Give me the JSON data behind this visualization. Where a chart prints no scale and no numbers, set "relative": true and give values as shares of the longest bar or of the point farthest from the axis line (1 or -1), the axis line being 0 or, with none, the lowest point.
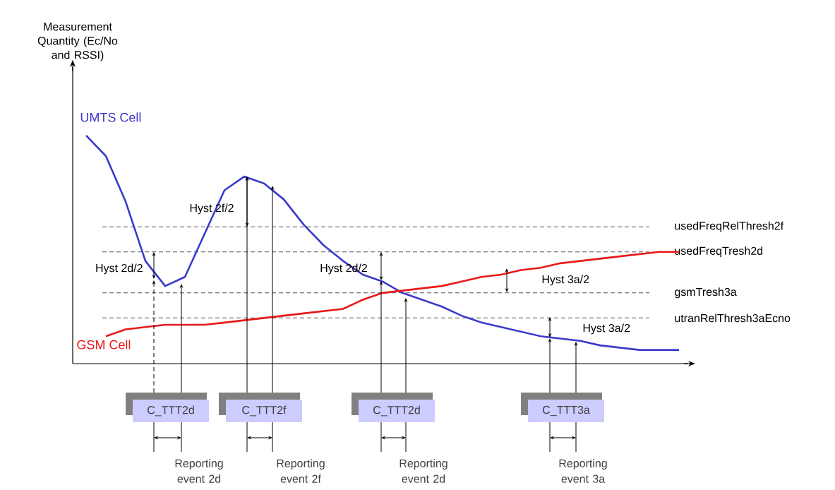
{
  "chart_data": {
    "type": "line",
    "relative": true,
    "categories": [
      null,
      null,
      null,
      null,
      null,
      null,
      null,
      null,
      null,
      null,
      null,
      null,
      null,
      null,
      null,
      null,
      null,
      null,
      null,
      null,
      null,
      null,
      null,
      null,
      null,
      null,
      null,
      null,
      null,
      null,
      null
    ],
    "series": [
      {
        "name": "UMTS Cell",
        "color": "#3a3acc",
        "values": [
          1.0,
          0.91,
          0.71,
          0.45,
          0.34,
          0.38,
          0.57,
          0.76,
          0.82,
          0.79,
          0.72,
          0.61,
          0.52,
          0.45,
          0.39,
          0.36,
          0.31,
          0.28,
          0.25,
          0.21,
          0.18,
          0.16,
          0.14,
          0.12,
          0.11,
          0.1,
          0.08,
          0.07,
          0.06,
          0.06,
          0.06
        ]
      },
      {
        "name": "GSM Cell",
        "color": "#e8191a",
        "values": [
          null,
          0.12,
          0.15,
          0.16,
          0.17,
          0.17,
          0.17,
          0.18,
          0.19,
          0.2,
          0.21,
          0.22,
          0.23,
          0.24,
          0.28,
          0.31,
          0.32,
          0.33,
          0.34,
          0.36,
          0.38,
          0.39,
          0.41,
          0.42,
          0.44,
          0.45,
          0.46,
          0.47,
          0.48,
          0.49,
          0.49
        ]
      }
    ],
    "ref_lines": [
      {
        "axis": "y",
        "value": 0.6,
        "label": "usedFreqRelThresh2f",
        "color": "#555555",
        "line_style": "dashed"
      },
      {
        "axis": "y",
        "value": 0.49,
        "label": "usedFreqTresh2d",
        "color": "#555555",
        "line_style": "dashed"
      },
      {
        "axis": "y",
        "value": 0.31,
        "label": "gsmTresh3a",
        "color": "#555555",
        "line_style": "dashed"
      },
      {
        "axis": "y",
        "value": 0.2,
        "label": "utranRelThresh3aEcno",
        "color": "#555555",
        "line_style": "dashed"
      }
    ],
    "annotations": [
      "Hyst 2d/2",
      "Hyst 2f/2",
      "Hyst 2d/2",
      "Hyst 3a/2",
      "Hyst 3a/2",
      "C_TTT2d",
      "C_TTT2f",
      "C_TTT2d",
      "C_TTT3a",
      "Reporting event 2d",
      "Reporting event 2f",
      "Reporting event 2d",
      "Reporting event 3a",
      "Measurement Quantity (Ec/No and RSSI)"
    ],
    "legend": false,
    "marker": "none",
    "line_style": "solid"
  }
}
